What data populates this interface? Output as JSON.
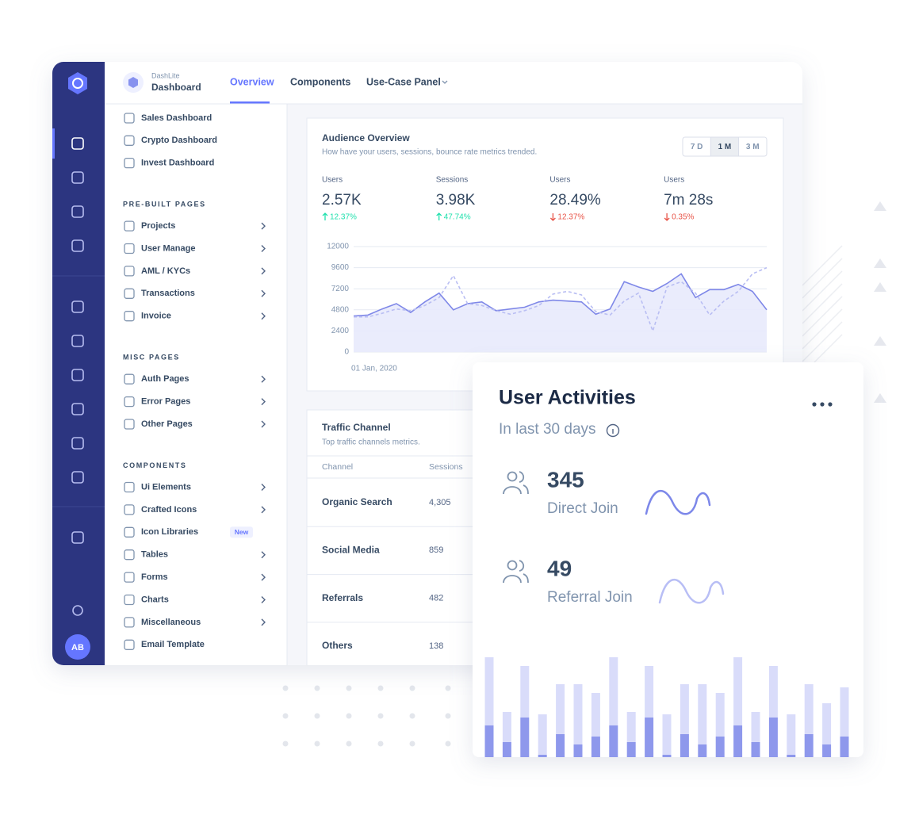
{
  "brand": {
    "small": "DashLite",
    "title": "Dashboard"
  },
  "nav": [
    "Overview",
    "Components",
    "Use-Case Panel"
  ],
  "avatar": "AB",
  "menu": {
    "dashboards": [
      "Sales Dashboard",
      "Crypto Dashboard",
      "Invest Dashboard"
    ],
    "sections": [
      {
        "heading": "PRE-BUILT PAGES",
        "items": [
          {
            "label": "Projects",
            "submenu": true
          },
          {
            "label": "User Manage",
            "submenu": true
          },
          {
            "label": "AML / KYCs",
            "submenu": true
          },
          {
            "label": "Transactions",
            "submenu": true
          },
          {
            "label": "Invoice",
            "submenu": true
          }
        ]
      },
      {
        "heading": "MISC PAGES",
        "items": [
          {
            "label": "Auth Pages",
            "submenu": true
          },
          {
            "label": "Error Pages",
            "submenu": true
          },
          {
            "label": "Other Pages",
            "submenu": true
          }
        ]
      },
      {
        "heading": "COMPONENTS",
        "items": [
          {
            "label": "Ui Elements",
            "submenu": true
          },
          {
            "label": "Crafted Icons",
            "submenu": true
          },
          {
            "label": "Icon Libraries",
            "submenu": false,
            "badge": "New"
          },
          {
            "label": "Tables",
            "submenu": true
          },
          {
            "label": "Forms",
            "submenu": true
          },
          {
            "label": "Charts",
            "submenu": true
          },
          {
            "label": "Miscellaneous",
            "submenu": true
          },
          {
            "label": "Email Template",
            "submenu": false
          }
        ]
      }
    ]
  },
  "audience": {
    "title": "Audience Overview",
    "subtitle": "How have your users, sessions, bounce rate metrics trended.",
    "ranges": [
      "7 D",
      "1 M",
      "3 M"
    ],
    "active_range": 1,
    "stats": [
      {
        "label": "Users",
        "value": "2.57K",
        "change": "12.37%",
        "trend": "up"
      },
      {
        "label": "Sessions",
        "value": "3.98K",
        "change": "47.74%",
        "trend": "up"
      },
      {
        "label": "Users",
        "value": "28.49%",
        "change": "12.37%",
        "trend": "down"
      },
      {
        "label": "Users",
        "value": "7m 28s",
        "change": "0.35%",
        "trend": "down"
      }
    ],
    "chart": {
      "type": "line",
      "categories": [
        "01 Jan, 2020",
        null,
        null,
        null,
        null,
        null,
        null,
        null,
        null,
        null,
        null,
        null,
        null,
        null,
        null,
        null,
        null,
        null,
        null,
        null,
        null,
        null,
        null,
        null,
        null,
        null,
        null,
        null,
        null,
        null
      ],
      "series": [
        {
          "color": "#7f88e8",
          "fill": "#e8eafc",
          "dashed": false,
          "values": [
            4100,
            4200,
            4900,
            5500,
            4500,
            5700,
            6700,
            4800,
            5500,
            5700,
            4700,
            4900,
            5100,
            5700,
            5900,
            5800,
            5700,
            4300,
            4900,
            8000,
            7400,
            6900,
            7800,
            8900,
            6200,
            7100,
            7100,
            7700,
            6900,
            4800
          ]
        },
        {
          "color": "#b9bef3",
          "dashed": true,
          "values": [
            4000,
            4000,
            4400,
            4900,
            4700,
            5300,
            6200,
            8700,
            5500,
            5300,
            4700,
            4300,
            4700,
            5300,
            6600,
            6900,
            6500,
            4600,
            4200,
            5800,
            6700,
            2400,
            7400,
            8000,
            6700,
            4200,
            5800,
            6900,
            8900,
            9600
          ]
        }
      ],
      "ylim": [
        0,
        12000
      ],
      "yticks": [
        0,
        2400,
        4800,
        7200,
        9600,
        12000
      ],
      "grid": true
    }
  },
  "traffic": {
    "title": "Traffic Channel",
    "subtitle": "Top traffic channels metrics.",
    "columns": [
      "Channel",
      "Sessions"
    ],
    "rows": [
      [
        "Organic Search",
        "4,305"
      ],
      [
        "Social Media",
        "859"
      ],
      [
        "Referrals",
        "482"
      ],
      [
        "Others",
        "138"
      ]
    ]
  },
  "activities": {
    "title": "User Activities",
    "subtitle": "In last 30 days",
    "items": [
      {
        "value": "345",
        "label": "Direct Join"
      },
      {
        "value": "49",
        "label": "Referral Join"
      }
    ],
    "chart": {
      "type": "bar",
      "stacked": true,
      "series": [
        {
          "color": "#8e98ec",
          "values": [
            40,
            19,
            50,
            3,
            29,
            16,
            26,
            40,
            19,
            50,
            3,
            29,
            16,
            26,
            40,
            19,
            50,
            3,
            29,
            16,
            26
          ]
        },
        {
          "color": "#d9dcfa",
          "values": [
            86,
            38,
            65,
            51,
            63,
            76,
            55,
            86,
            38,
            65,
            51,
            63,
            76,
            55,
            86,
            38,
            65,
            51,
            63,
            52,
            62
          ]
        }
      ]
    }
  }
}
